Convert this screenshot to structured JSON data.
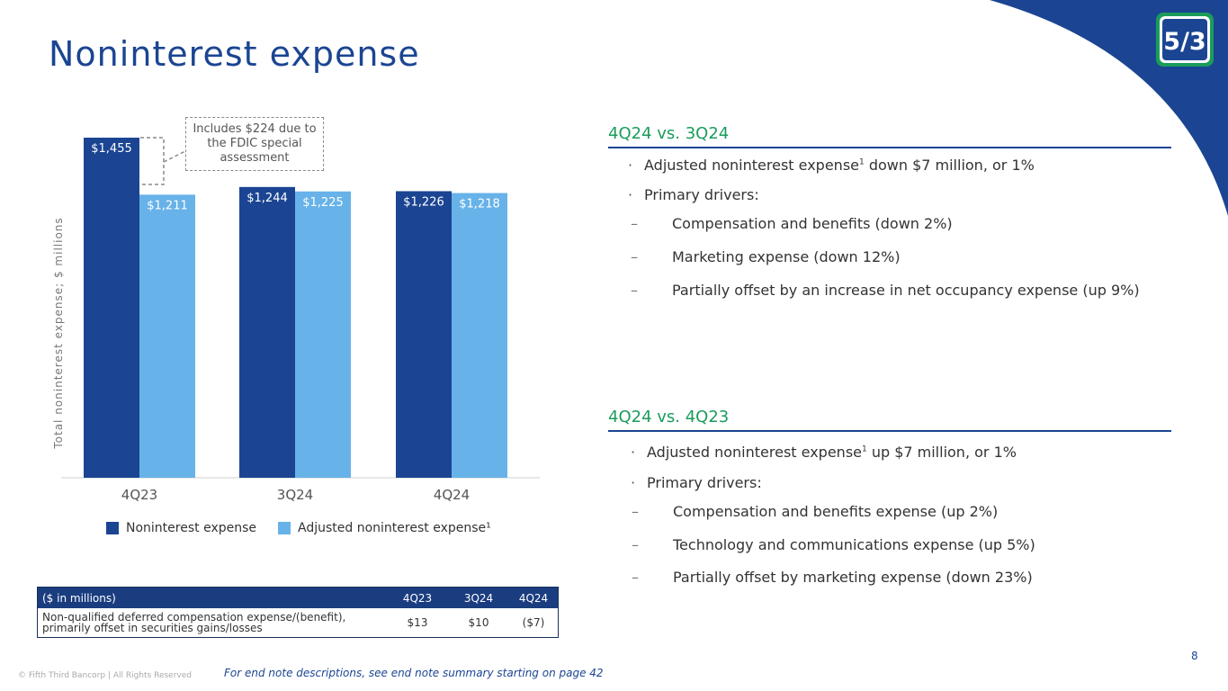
{
  "title": "Noninterest expense",
  "colors": {
    "navy": "#1b4592",
    "light_blue": "#67b2e8",
    "green": "#1a9c5b"
  },
  "logo": {
    "icon": "fifth-third-logo-icon",
    "text": "5/3"
  },
  "callout": "Includes $224 due to the FDIC special assessment",
  "chart_data": {
    "type": "bar",
    "categories": [
      "4Q23",
      "3Q24",
      "4Q24"
    ],
    "series": [
      {
        "name": "Noninterest expense",
        "values": [
          1455,
          1244,
          1226
        ],
        "labels": [
          "$1,455",
          "$1,244",
          "$1,226"
        ],
        "color": "#1b4592"
      },
      {
        "name": "Adjusted noninterest expense¹",
        "values": [
          1211,
          1225,
          1218
        ],
        "labels": [
          "$1,211",
          "$1,225",
          "$1,218"
        ],
        "color": "#67b2e8"
      }
    ],
    "ylabel": "Total noninterest expense; $ millions",
    "ylim": [
      0,
      1500
    ],
    "legend": "bottom"
  },
  "table": {
    "header": [
      "($ in millions)",
      "4Q23",
      "3Q24",
      "4Q24"
    ],
    "rows": [
      {
        "label_line1": "Non-qualified deferred compensation expense/(benefit),",
        "label_line2": "primarily offset in securities gains/losses",
        "values": [
          "$13",
          "$10",
          "($7)"
        ]
      }
    ]
  },
  "section1": {
    "heading": "4Q24 vs. 3Q24",
    "bullet1_text": "Adjusted noninterest expense",
    "bullet1_sup": "1",
    "bullet1_rest": " down $7 million, or 1%",
    "bullet2": "Primary drivers:",
    "sub": [
      "Compensation and benefits (down 2%)",
      "Marketing expense (down 12%)",
      "Partially offset by an increase in net occupancy expense (up 9%)"
    ]
  },
  "section2": {
    "heading": "4Q24 vs. 4Q23",
    "bullet1_text": "Adjusted noninterest expense",
    "bullet1_sup": "1",
    "bullet1_rest": " up $7 million, or 1%",
    "bullet2": "Primary drivers:",
    "sub": [
      "Compensation and benefits expense (up 2%)",
      "Technology and communications expense (up 5%)",
      "Partially offset by marketing expense (down 23%)"
    ]
  },
  "bullet_char": "·",
  "dash_char": "–",
  "page_number": "8",
  "copyright": "© Fifth Third Bancorp | All Rights Reserved",
  "endnote": "For end note descriptions, see end note summary starting on page 42"
}
